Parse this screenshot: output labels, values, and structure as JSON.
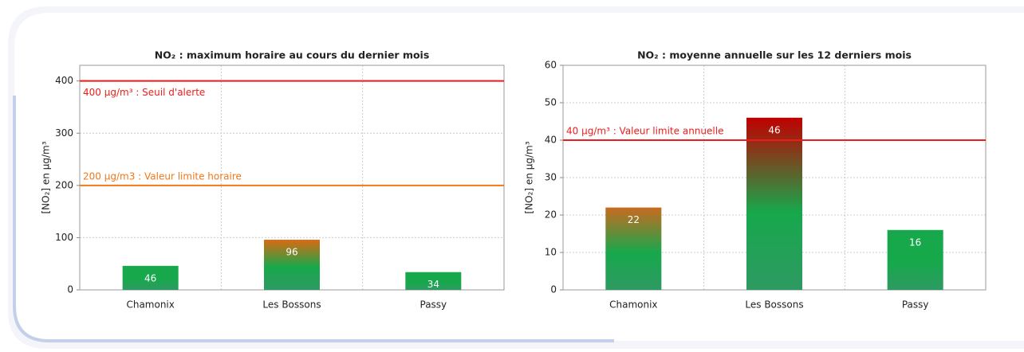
{
  "chart_data": [
    {
      "type": "bar",
      "title": "NO₂ : maximum horaire au cours du dernier mois",
      "ylabel": "[NO₂] en µg/m³",
      "categories": [
        "Chamonix",
        "Les Bossons",
        "Passy"
      ],
      "values": [
        46,
        96,
        34
      ],
      "colors": [
        "#17a84c",
        "#d96a12",
        "#17a84c"
      ],
      "ylim": [
        0,
        430
      ],
      "yticks": [
        0,
        100,
        200,
        300,
        400
      ],
      "grid": true,
      "thresholds": [
        {
          "value": 400,
          "label": "400 µg/m³ : Seuil d'alerte",
          "color": "#ee1c1c"
        },
        {
          "value": 200,
          "label": "200 µg/m3 : Valeur limite horaire",
          "color": "#f07818"
        }
      ]
    },
    {
      "type": "bar",
      "title": "NO₂ : moyenne annuelle sur les 12 derniers mois",
      "ylabel": "[NO₂] en µg/m³",
      "categories": [
        "Chamonix",
        "Les Bossons",
        "Passy"
      ],
      "values": [
        22,
        46,
        16
      ],
      "colors": [
        "#c86a20",
        "#c00000",
        "#17a84c"
      ],
      "ylim": [
        0,
        60
      ],
      "yticks": [
        0,
        10,
        20,
        30,
        40,
        50,
        60
      ],
      "grid": true,
      "thresholds": [
        {
          "value": 40,
          "label": "40 µg/m³ : Valeur limite annuelle",
          "color": "#ee1c1c"
        }
      ]
    }
  ]
}
